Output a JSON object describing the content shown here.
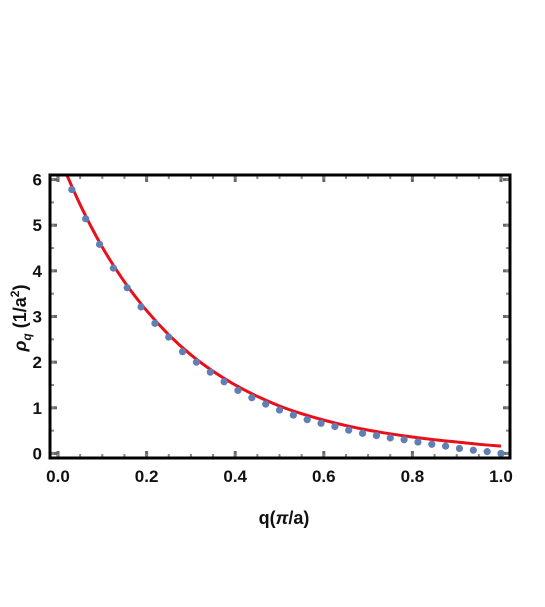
{
  "chart_data": {
    "type": "scatter",
    "title": "",
    "xlabel": "q(π/a)",
    "ylabel": "ρq(1/a²)",
    "ylabel_parts": {
      "main": "ρ",
      "sub": "q",
      "open": " (1/a",
      "sup": "2",
      "close": ")"
    },
    "xlabel_parts": {
      "pre": "q(",
      "italic": "π",
      "post": "/a)"
    },
    "xlim": [
      0,
      1.0
    ],
    "ylim": [
      -0.1,
      6.1
    ],
    "xticks": [
      0.0,
      0.2,
      0.4,
      0.6,
      0.8,
      1.0
    ],
    "xtick_labels": [
      "0.0",
      "0.2",
      "0.4",
      "0.6",
      "0.8",
      "1.0"
    ],
    "yticks": [
      0,
      1,
      2,
      3,
      4,
      5,
      6
    ],
    "ytick_labels": [
      "0",
      "1",
      "2",
      "3",
      "4",
      "5",
      "6"
    ],
    "grid": false,
    "series": [
      {
        "kind": "points",
        "color": "#5f7fb5",
        "x": [
          0.0312,
          0.0625,
          0.0938,
          0.125,
          0.1562,
          0.1875,
          0.2188,
          0.25,
          0.2812,
          0.3125,
          0.3438,
          0.375,
          0.4062,
          0.4375,
          0.4688,
          0.5,
          0.5312,
          0.5625,
          0.5938,
          0.625,
          0.6562,
          0.6875,
          0.7188,
          0.75,
          0.7812,
          0.8125,
          0.8438,
          0.875,
          0.9062,
          0.9375,
          0.9688,
          1.0
        ],
        "y": [
          5.78,
          5.14,
          4.58,
          4.06,
          3.63,
          3.21,
          2.85,
          2.55,
          2.23,
          2.0,
          1.78,
          1.57,
          1.38,
          1.22,
          1.08,
          0.95,
          0.84,
          0.74,
          0.66,
          0.59,
          0.51,
          0.44,
          0.39,
          0.34,
          0.3,
          0.25,
          0.2,
          0.16,
          0.11,
          0.07,
          0.04,
          0.0
        ]
      },
      {
        "kind": "line",
        "color": "#e8101a",
        "x": [
          0.0,
          0.05,
          0.1,
          0.15,
          0.2,
          0.25,
          0.3,
          0.35,
          0.4,
          0.45,
          0.5,
          0.55,
          0.6,
          0.65,
          0.7,
          0.75,
          0.8,
          0.85,
          0.9,
          0.95,
          1.0
        ],
        "y": [
          6.55,
          5.45,
          4.52,
          3.76,
          3.13,
          2.6,
          2.16,
          1.8,
          1.5,
          1.25,
          1.04,
          0.87,
          0.73,
          0.61,
          0.51,
          0.43,
          0.36,
          0.3,
          0.25,
          0.2,
          0.16
        ]
      }
    ]
  }
}
